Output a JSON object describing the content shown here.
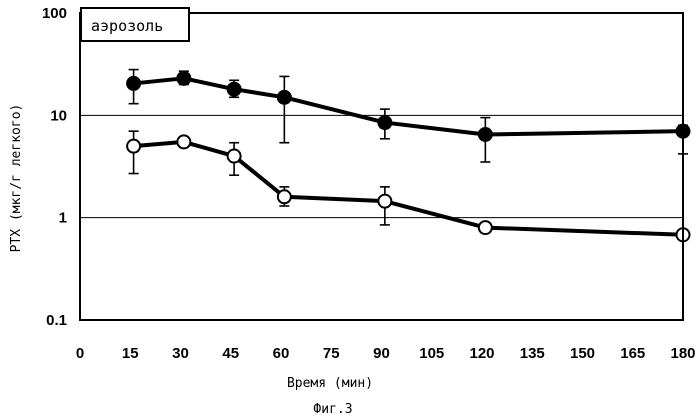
{
  "chart_data": {
    "type": "line",
    "title": "",
    "legend_label": "аэрозоль",
    "legend_position": "top-left",
    "xlabel": "Время (мин)",
    "ylabel": "PTX (мкг/г легкого)",
    "caption": "Фиг.3",
    "x_scale": "linear",
    "y_scale": "log",
    "xlim": [
      0,
      180
    ],
    "ylim": [
      0.1,
      100
    ],
    "x_ticks": [
      0,
      15,
      30,
      45,
      60,
      75,
      90,
      105,
      120,
      135,
      150,
      165,
      180
    ],
    "y_ticks": [
      0.1,
      1,
      10,
      100
    ],
    "y_tick_labels": [
      "0.1",
      "1",
      "10",
      "100"
    ],
    "gridlines_y": [
      1,
      10
    ],
    "series": [
      {
        "marker": "filled-circle",
        "color": "#000000",
        "x": [
          16,
          31,
          46,
          61,
          91,
          121,
          181
        ],
        "y": [
          20.5,
          23,
          18,
          15,
          8.5,
          6.5,
          7
        ],
        "err_high": [
          28,
          27,
          22,
          24,
          11.5,
          9.5,
          8
        ],
        "err_low": [
          13,
          20,
          15,
          5.4,
          5.9,
          3.5,
          4.2
        ]
      },
      {
        "marker": "open-circle",
        "color": "#000000",
        "x": [
          16,
          31,
          46,
          61,
          91,
          121,
          181
        ],
        "y": [
          5,
          5.5,
          4,
          1.6,
          1.45,
          0.8,
          0.68
        ],
        "err_high": [
          7,
          5.7,
          5.4,
          2,
          2,
          0.8,
          0.68
        ],
        "err_low": [
          2.7,
          5.2,
          2.6,
          1.3,
          0.85,
          0.8,
          0.68
        ]
      }
    ]
  }
}
